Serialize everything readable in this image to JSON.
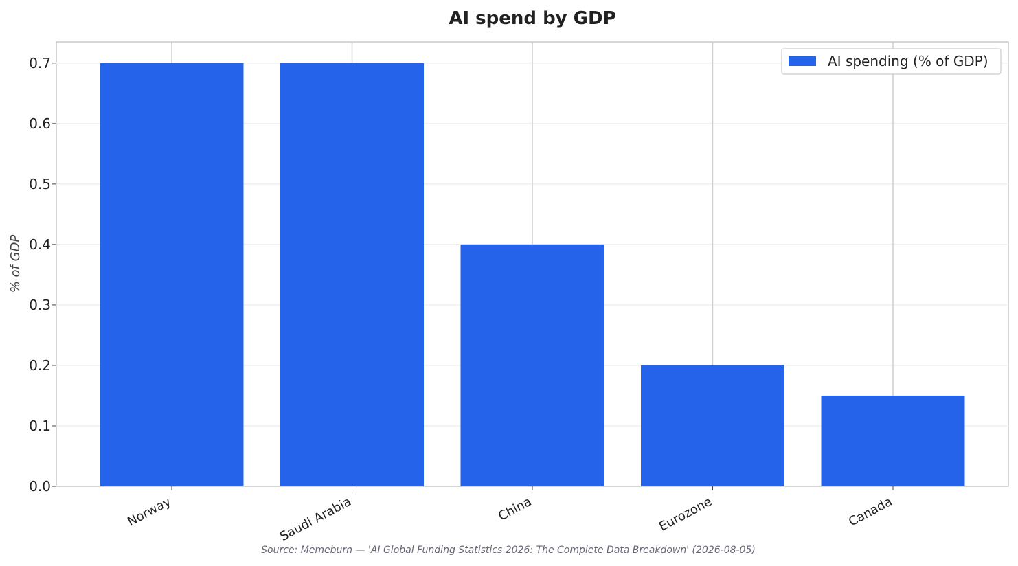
{
  "chart_data": {
    "type": "bar",
    "title": "AI spend by GDP",
    "xlabel": "",
    "ylabel": "% of GDP",
    "categories": [
      "Norway",
      "Saudi Arabia",
      "China",
      "Eurozone",
      "Canada"
    ],
    "series": [
      {
        "name": "AI spending (% of GDP)",
        "values": [
          0.7,
          0.7,
          0.4,
          0.2,
          0.15
        ],
        "color": "#2563eb"
      }
    ],
    "ylim": [
      0,
      0.735
    ],
    "yticks": [
      "0.0",
      "0.1",
      "0.2",
      "0.3",
      "0.4",
      "0.5",
      "0.6",
      "0.7"
    ],
    "grid": true,
    "legend": "top-right",
    "source": "Source: Memeburn — 'AI Global Funding Statistics 2026: The Complete Data Breakdown' (2026-08-05)"
  }
}
